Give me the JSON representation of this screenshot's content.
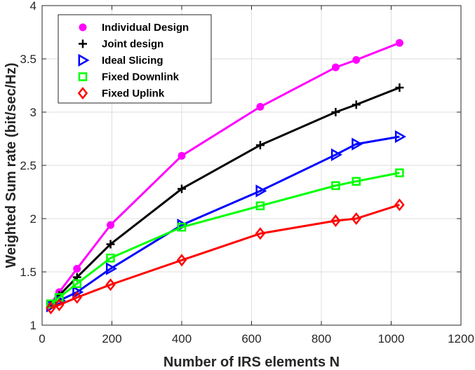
{
  "chart_data": {
    "type": "line",
    "title": "",
    "xlabel": "Number of IRS elements N",
    "ylabel": "Weighted Sum rate (bit/sec/Hz)",
    "xlim": [
      0,
      1200
    ],
    "ylim": [
      1,
      4
    ],
    "xticks": [
      0,
      200,
      400,
      600,
      800,
      1000,
      1200
    ],
    "yticks": [
      1,
      1.5,
      2,
      2.5,
      3,
      3.5,
      4
    ],
    "xtick_labels": [
      "0",
      "200",
      "400",
      "600",
      "800",
      "1000",
      "1200"
    ],
    "ytick_labels": [
      "1",
      "1.5",
      "2",
      "2.5",
      "3",
      "3.5",
      "4"
    ],
    "grid": true,
    "legend_position": "top-left",
    "x": [
      25,
      49,
      100,
      196,
      400,
      625,
      841,
      900,
      1024
    ],
    "series": [
      {
        "name": "Individual Design",
        "marker": "circle",
        "color": "#ff00ff",
        "values": [
          1.2,
          1.31,
          1.53,
          1.94,
          2.59,
          3.05,
          3.42,
          3.49,
          3.65
        ]
      },
      {
        "name": "Joint design",
        "marker": "plus",
        "color": "#000000",
        "values": [
          1.19,
          1.28,
          1.45,
          1.76,
          2.28,
          2.69,
          3.0,
          3.07,
          3.23
        ]
      },
      {
        "name": "Ideal Slicing",
        "marker": "triangle-right",
        "color": "#0000ff",
        "values": [
          1.18,
          1.23,
          1.31,
          1.53,
          1.94,
          2.26,
          2.6,
          2.7,
          2.77
        ]
      },
      {
        "name": "Fixed Downlink",
        "marker": "square",
        "color": "#00ff00",
        "values": [
          1.2,
          1.26,
          1.39,
          1.63,
          1.92,
          2.12,
          2.31,
          2.35,
          2.43
        ]
      },
      {
        "name": "Fixed Uplink",
        "marker": "diamond",
        "color": "#ff0000",
        "values": [
          1.16,
          1.19,
          1.26,
          1.38,
          1.61,
          1.86,
          1.98,
          2.0,
          2.13
        ]
      }
    ]
  }
}
